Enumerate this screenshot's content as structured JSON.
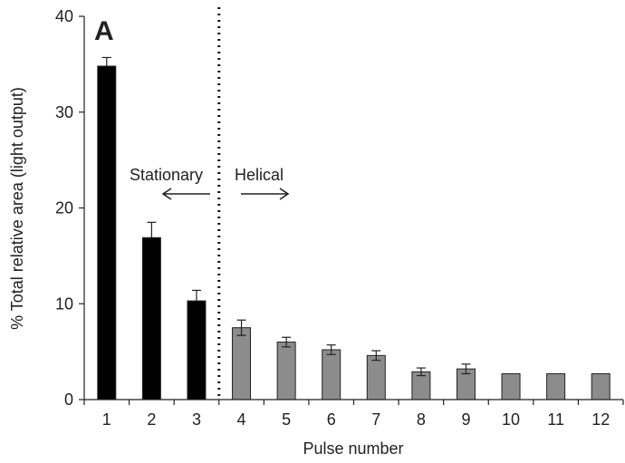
{
  "chart_data": {
    "type": "bar",
    "panel_label": "A",
    "categories": [
      "1",
      "2",
      "3",
      "4",
      "5",
      "6",
      "7",
      "8",
      "9",
      "10",
      "11",
      "12"
    ],
    "values": [
      34.8,
      16.9,
      10.3,
      7.5,
      6.0,
      5.2,
      4.6,
      2.9,
      3.2,
      2.7,
      2.7,
      2.7
    ],
    "errors": [
      0.9,
      1.6,
      1.1,
      0.8,
      0.5,
      0.5,
      0.5,
      0.4,
      0.5,
      0,
      0,
      0
    ],
    "bar_colors": [
      "#000000",
      "#000000",
      "#000000",
      "#8c8c8c",
      "#8c8c8c",
      "#8c8c8c",
      "#8c8c8c",
      "#8c8c8c",
      "#8c8c8c",
      "#8c8c8c",
      "#8c8c8c",
      "#8c8c8c"
    ],
    "xlabel": "Pulse number",
    "ylabel": "% Total relative area (light output)",
    "ylim": [
      0,
      40
    ],
    "yticks": [
      "0",
      "10",
      "20",
      "30",
      "40"
    ],
    "divider_between_categories": [
      "3",
      "4"
    ],
    "annotations": {
      "left": "Stationary",
      "right": "Helical"
    },
    "grid": false
  }
}
